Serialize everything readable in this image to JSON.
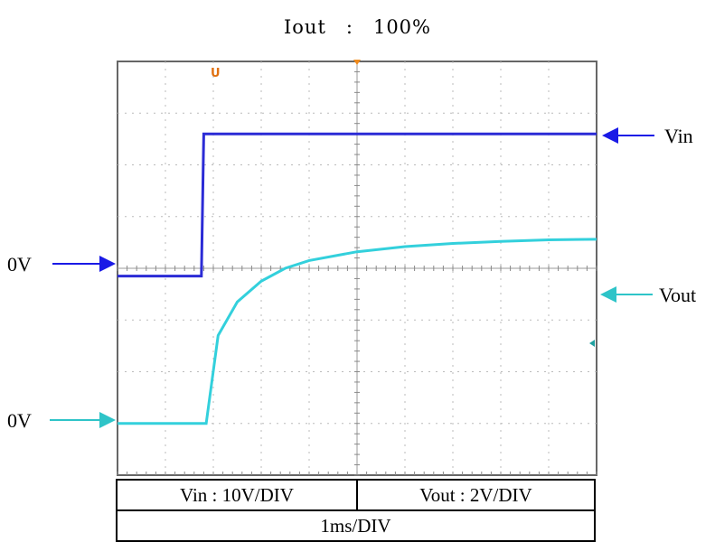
{
  "title": "Iout　:　100%",
  "chart_data": {
    "type": "line",
    "x_divisions": 10,
    "y_divisions": 8,
    "series": [
      {
        "name": "Vin",
        "color": "#2b2bd6",
        "x": [
          0,
          1.75,
          1.8,
          10
        ],
        "y": [
          -0.15,
          -0.15,
          2.6,
          2.6
        ]
      },
      {
        "name": "Vout",
        "color": "#33d0dc",
        "x": [
          0,
          1.85,
          2.1,
          2.5,
          3,
          3.5,
          4,
          5,
          6,
          7,
          8,
          9,
          10
        ],
        "y": [
          0,
          0,
          1.7,
          2.35,
          2.75,
          3.0,
          3.15,
          3.32,
          3.42,
          3.48,
          3.52,
          3.55,
          3.56
        ]
      }
    ],
    "markers": {
      "vin_label": "Vin",
      "vout_label": "Vout",
      "vin_zero_label": "0V",
      "vout_zero_label": "0V"
    },
    "trigger_label": "U",
    "scale": {
      "vin": "Vin : 10V/DIV",
      "vout": "Vout : 2V/DIV",
      "time": "1ms/DIV"
    }
  }
}
